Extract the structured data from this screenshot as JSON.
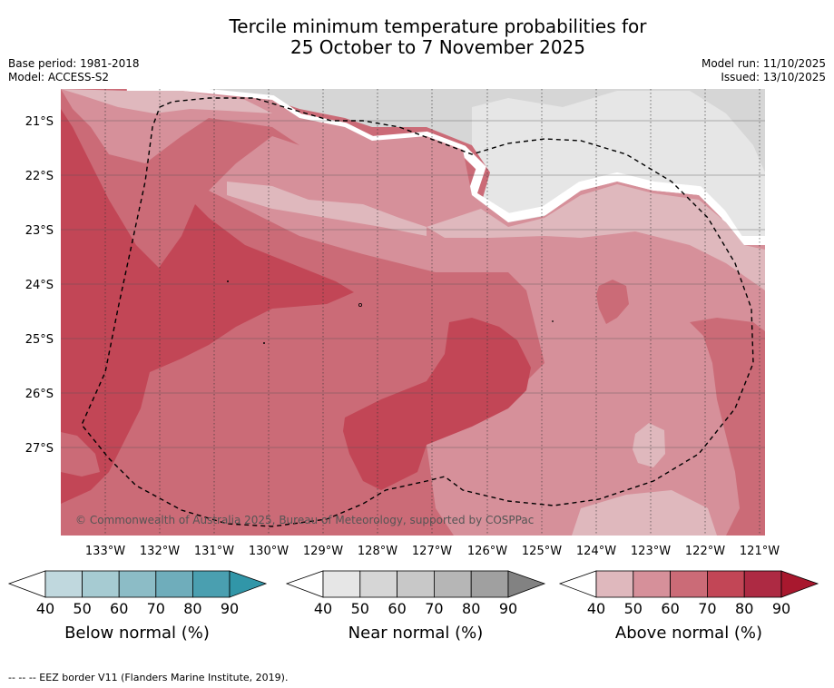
{
  "title": {
    "line1": "Tercile minimum temperature probabilities for",
    "line2": "25 October to 7 November 2025"
  },
  "meta_left": {
    "base_period": "Base period: 1981-2018",
    "model": "Model: ACCESS-S2"
  },
  "meta_right": {
    "model_run": "Model run: 11/10/2025",
    "issued": "Issued: 13/10/2025"
  },
  "map": {
    "lat_labels": [
      "21°S",
      "22°S",
      "23°S",
      "24°S",
      "25°S",
      "26°S",
      "27°S"
    ],
    "lon_labels": [
      "133°W",
      "132°W",
      "131°W",
      "130°W",
      "129°W",
      "128°W",
      "127°W",
      "126°W",
      "125°W",
      "124°W",
      "123°W",
      "122°W",
      "121°W"
    ],
    "copyright": "© Commonwealth of Australia 2025, Bureau of Meteorology, supported by COSPPac",
    "colors": {
      "near_40": "#e6e6e6",
      "near_50": "#d6d6d6",
      "above_40": "#dfb8bd",
      "above_50": "#d6909a",
      "above_60": "#cb6b77",
      "above_70": "#c24656",
      "above_80": "#ad2a43"
    }
  },
  "colorbars": [
    {
      "caption": "Below normal (%)",
      "ticks": [
        "40",
        "50",
        "60",
        "70",
        "80",
        "90"
      ],
      "colors": [
        "#ffffff",
        "#c0d8de",
        "#a6cbd2",
        "#8cbcc6",
        "#6fadbb",
        "#4a9fb0",
        "#3196a8"
      ]
    },
    {
      "caption": "Near normal (%)",
      "ticks": [
        "40",
        "50",
        "60",
        "70",
        "80",
        "90"
      ],
      "colors": [
        "#ffffff",
        "#e6e6e6",
        "#d6d6d6",
        "#c8c8c8",
        "#b6b6b6",
        "#a0a0a0",
        "#828282"
      ]
    },
    {
      "caption": "Above normal (%)",
      "ticks": [
        "40",
        "50",
        "60",
        "70",
        "80",
        "90"
      ],
      "colors": [
        "#ffffff",
        "#dfb8bd",
        "#d6909a",
        "#cb6b77",
        "#c24656",
        "#ad2a43",
        "#a8182e"
      ]
    }
  ],
  "footnote": "-- -- -- EEZ border V11 (Flanders Marine Institute, 2019)."
}
